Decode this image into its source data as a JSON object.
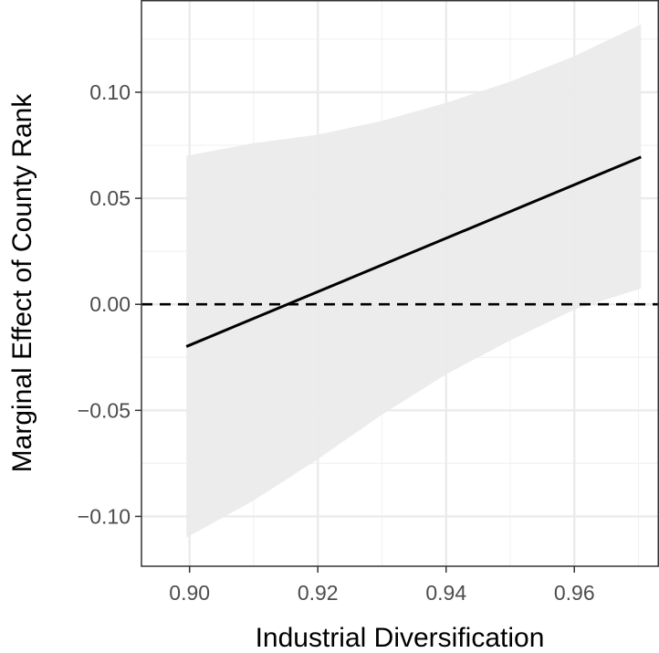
{
  "chart_data": {
    "type": "line",
    "title": "",
    "xlabel": "Industrial Diversification",
    "ylabel": "Marginal Effect of County Rank",
    "xlim": [
      0.8925,
      0.9732
    ],
    "ylim": [
      -0.1235,
      0.1435
    ],
    "x_ticks": [
      0.9,
      0.92,
      0.94,
      0.96
    ],
    "x_tick_labels": [
      "0.90",
      "0.92",
      "0.94",
      "0.96"
    ],
    "y_ticks": [
      -0.1,
      -0.05,
      0.0,
      0.05,
      0.1
    ],
    "y_tick_labels": [
      "−0.10",
      "−0.05",
      "0.00",
      "0.05",
      "0.10"
    ],
    "grid": true,
    "series": [
      {
        "type": "line",
        "x": [
          0.8995,
          0.9704
        ],
        "y": [
          -0.0199,
          0.0695
        ],
        "color": "#000000"
      }
    ],
    "confidence_band": {
      "x": [
        0.8995,
        0.91,
        0.92,
        0.93,
        0.94,
        0.95,
        0.96,
        0.9704
      ],
      "lower": [
        -0.11,
        -0.0925,
        -0.073,
        -0.052,
        -0.033,
        -0.017,
        -0.0025,
        0.0075
      ],
      "upper": [
        0.07,
        0.076,
        0.08,
        0.0865,
        0.095,
        0.105,
        0.117,
        0.132
      ],
      "color": "#ebebeb"
    },
    "reference_line": {
      "y": 0.0,
      "style": "dashed",
      "color": "#000000"
    }
  }
}
